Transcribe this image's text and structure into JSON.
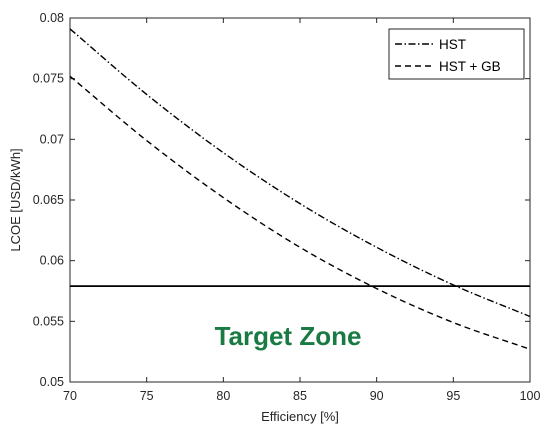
{
  "chart_data": {
    "type": "line",
    "title": "",
    "xlabel": "Efficiency [%]",
    "ylabel": "LCOE [USD/kWh]",
    "xlim": [
      70,
      100
    ],
    "ylim": [
      0.05,
      0.08
    ],
    "x_ticks": [
      "70",
      "75",
      "80",
      "85",
      "90",
      "95",
      "100"
    ],
    "y_ticks": [
      "0.05",
      "0.055",
      "0.06",
      "0.065",
      "0.07",
      "0.075",
      "0.08"
    ],
    "grid": false,
    "legend_position": "top-right",
    "series": [
      {
        "name": "HST",
        "style": "dash-dot",
        "x": [
          70,
          75,
          80,
          85,
          90,
          95,
          100
        ],
        "y": [
          0.0791,
          0.0737,
          0.0689,
          0.0647,
          0.0611,
          0.058,
          0.0554
        ]
      },
      {
        "name": "HST + GB",
        "style": "dashed",
        "x": [
          70,
          75,
          80,
          85,
          90,
          95,
          100
        ],
        "y": [
          0.0752,
          0.0699,
          0.0652,
          0.0611,
          0.0577,
          0.0549,
          0.0527
        ]
      }
    ],
    "reference_line": {
      "y": 0.0579,
      "style": "solid"
    },
    "annotation": {
      "text": "Target Zone",
      "color": "#1a7a43"
    },
    "colors": {
      "line": "#000000",
      "axis": "#262626",
      "annotation": "#1a7a43"
    }
  }
}
